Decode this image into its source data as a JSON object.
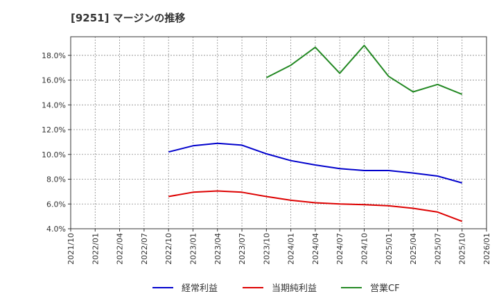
{
  "chart_data": {
    "type": "line",
    "title": "[9251]  マージンの推移",
    "xlabel": "",
    "ylabel": "",
    "x_ticks": [
      "2021/10",
      "2022/01",
      "2022/04",
      "2022/07",
      "2022/10",
      "2023/01",
      "2023/04",
      "2023/07",
      "2023/10",
      "2024/01",
      "2024/04",
      "2024/07",
      "2024/10",
      "2025/01",
      "2025/04",
      "2025/07",
      "2025/10",
      "2026/01"
    ],
    "y_ticks": [
      "4.0%",
      "6.0%",
      "8.0%",
      "10.0%",
      "12.0%",
      "14.0%",
      "16.0%",
      "18.0%"
    ],
    "ylim": [
      4.0,
      19.5
    ],
    "grid": true,
    "legend_position": "bottom",
    "series": [
      {
        "name": "経常利益",
        "color": "#0000cc",
        "x": [
          "2022/10",
          "2023/01",
          "2023/04",
          "2023/07",
          "2023/10",
          "2024/01",
          "2024/04",
          "2024/07",
          "2024/10",
          "2025/01",
          "2025/04",
          "2025/07",
          "2025/10"
        ],
        "values": [
          10.2,
          10.7,
          10.9,
          10.75,
          10.05,
          9.5,
          9.15,
          8.85,
          8.7,
          8.7,
          8.5,
          8.25,
          7.7
        ]
      },
      {
        "name": "当期純利益",
        "color": "#dd0000",
        "x": [
          "2022/10",
          "2023/01",
          "2023/04",
          "2023/07",
          "2023/10",
          "2024/01",
          "2024/04",
          "2024/07",
          "2024/10",
          "2025/01",
          "2025/04",
          "2025/07",
          "2025/10"
        ],
        "values": [
          6.6,
          6.95,
          7.05,
          6.95,
          6.6,
          6.3,
          6.1,
          6.0,
          5.95,
          5.85,
          5.65,
          5.35,
          4.6
        ]
      },
      {
        "name": "営業CF",
        "color": "#228822",
        "x": [
          "2023/10",
          "2024/01",
          "2024/04",
          "2024/07",
          "2024/10",
          "2025/01",
          "2025/04",
          "2025/07",
          "2025/10"
        ],
        "values": [
          16.2,
          17.2,
          18.65,
          16.55,
          18.8,
          16.3,
          15.05,
          15.65,
          14.85
        ]
      }
    ]
  }
}
